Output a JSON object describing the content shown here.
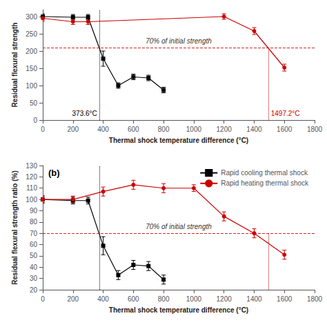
{
  "chart_data": [
    {
      "type": "line",
      "x_label": "Thermal shock temperature difference (°C)",
      "y_label": "Residual flexural strength",
      "xlim": [
        0,
        1800
      ],
      "ylim": [
        0,
        320
      ],
      "xticks": [
        0,
        200,
        400,
        600,
        800,
        1000,
        1200,
        1400,
        1600,
        1800
      ],
      "yticks": [
        0,
        50,
        100,
        150,
        200,
        250,
        300
      ],
      "grid": false,
      "series": [
        {
          "color": "#000000",
          "marker": "square",
          "line_style": "solid",
          "x": [
            0,
            200,
            300,
            400,
            500,
            600,
            700,
            800
          ],
          "values": [
            300,
            298,
            298,
            178,
            100,
            125,
            122,
            87
          ],
          "errors": [
            8,
            8,
            8,
            22,
            8,
            8,
            8,
            8
          ]
        },
        {
          "color": "#cc0000",
          "marker": "circle",
          "line_style": "solid",
          "x": [
            0,
            200,
            300,
            1200,
            1400,
            1600
          ],
          "values": [
            295,
            285,
            285,
            300,
            258,
            152
          ],
          "errors": [
            8,
            8,
            8,
            8,
            10,
            10
          ]
        }
      ],
      "hlines": [
        {
          "y": 210,
          "color": "#cc0000",
          "line_style": "dashed",
          "label": "70% of initial strength"
        }
      ],
      "vlines": [
        {
          "x": 373.6,
          "color": "#000000",
          "line_style": "dotted",
          "label": "373.6°C"
        },
        {
          "x": 1497.2,
          "ymax": 210,
          "color": "#cc0000",
          "line_style": "dotted",
          "label": "1497.2°C"
        }
      ]
    },
    {
      "type": "line",
      "x_label": "Thermal shock temperature difference (°C)",
      "y_label": "Residual flexural strength ratio (%)",
      "xlim": [
        0,
        1800
      ],
      "ylim": [
        20,
        130
      ],
      "xticks": [
        0,
        200,
        400,
        600,
        800,
        1000,
        1200,
        1400,
        1600,
        1800
      ],
      "yticks": [
        20,
        30,
        40,
        50,
        60,
        70,
        80,
        90,
        100,
        110,
        120,
        130
      ],
      "grid": false,
      "legend": "upper right",
      "annotations": [
        "(b)"
      ],
      "series": [
        {
          "name": "Rapid cooling thermal shock",
          "color": "#000000",
          "marker": "square",
          "line_style": "solid",
          "x": [
            0,
            200,
            300,
            400,
            500,
            600,
            700,
            800
          ],
          "values": [
            100,
            99,
            99,
            59,
            33,
            42,
            41,
            29
          ],
          "errors": [
            3,
            3,
            3,
            8,
            4,
            4,
            4,
            4
          ]
        },
        {
          "name": "Rapid heating thermal shock",
          "color": "#cc0000",
          "marker": "circle",
          "line_style": "solid",
          "x": [
            0,
            200,
            400,
            600,
            800,
            1000,
            1200,
            1400,
            1600
          ],
          "values": [
            100,
            100,
            107,
            113,
            110,
            110,
            85,
            70,
            51
          ],
          "errors": [
            3,
            3,
            4,
            4,
            4,
            3,
            4,
            4,
            4
          ]
        }
      ],
      "hlines": [
        {
          "y": 70,
          "color": "#cc0000",
          "line_style": "dashed",
          "label": "70% of initial strength"
        }
      ],
      "vlines": [
        {
          "x": 373.6,
          "color": "#000000",
          "line_style": "dotted"
        },
        {
          "x": 1497.2,
          "ymax": 70,
          "color": "#cc0000",
          "line_style": "dotted"
        }
      ]
    }
  ]
}
